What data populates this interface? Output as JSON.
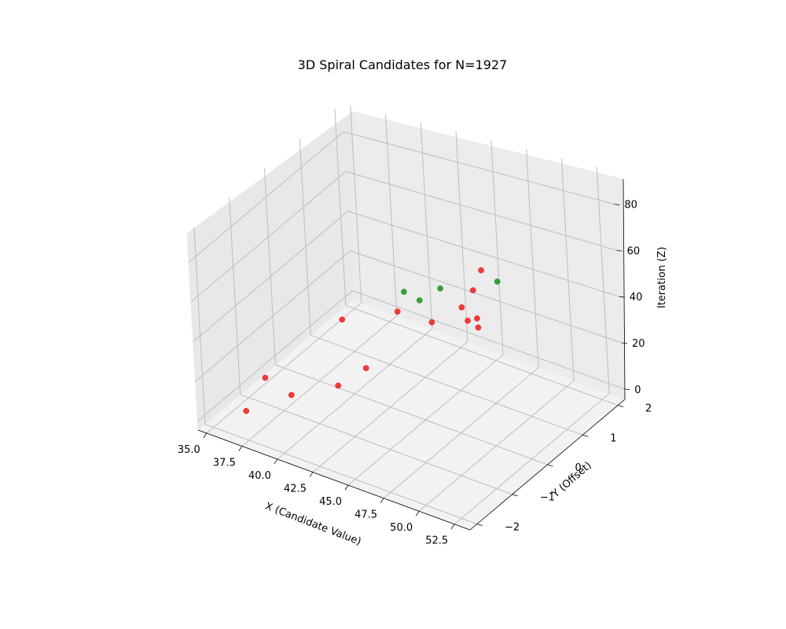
{
  "chart_data": {
    "type": "scatter",
    "title": "3D Spiral Candidates for N=1927",
    "xlabel": "X (Candidate Value)",
    "ylabel": "Y (Offset)",
    "zlabel": "Iteration (Z)",
    "xlim": [
      34.4,
      53.6
    ],
    "ylim": [
      -2.2,
      2.2
    ],
    "zlim": [
      -4.5,
      94.5
    ],
    "xticks": [
      "35.0",
      "37.5",
      "40.0",
      "42.5",
      "45.0",
      "47.5",
      "50.0",
      "52.5"
    ],
    "yticks": [
      "−2",
      "−1",
      "0",
      "1",
      "2"
    ],
    "zticks": [
      "0",
      "20",
      "40",
      "60",
      "80"
    ],
    "grid": true,
    "colors": {
      "red": "#ee1c1c",
      "green": "#1f8f1f"
    },
    "points": [
      {
        "x": 35.2,
        "y": -0.6,
        "z": 0,
        "c": "red"
      },
      {
        "x": 36.2,
        "y": 1.2,
        "z": 5,
        "c": "red"
      },
      {
        "x": 37.4,
        "y": -2.0,
        "z": 10,
        "c": "red"
      },
      {
        "x": 38.9,
        "y": 1.9,
        "z": 15,
        "c": "green"
      },
      {
        "x": 39.9,
        "y": -1.7,
        "z": 20,
        "c": "red"
      },
      {
        "x": 41.0,
        "y": 0.9,
        "z": 25,
        "c": "red"
      },
      {
        "x": 42.1,
        "y": 1.1,
        "z": 30,
        "c": "green"
      },
      {
        "x": 43.1,
        "y": 1.3,
        "z": 35,
        "c": "green"
      },
      {
        "x": 44.0,
        "y": -2.0,
        "z": 40,
        "c": "red"
      },
      {
        "x": 45.0,
        "y": -1.6,
        "z": 45,
        "c": "red"
      },
      {
        "x": 46.1,
        "y": 1.3,
        "z": 50,
        "c": "red"
      },
      {
        "x": 47.0,
        "y": -0.5,
        "z": 55,
        "c": "red"
      },
      {
        "x": 48.0,
        "y": 0.3,
        "z": 60,
        "c": "red"
      },
      {
        "x": 48.9,
        "y": -0.4,
        "z": 65,
        "c": "red"
      },
      {
        "x": 50.0,
        "y": 0.2,
        "z": 70,
        "c": "green"
      },
      {
        "x": 51.0,
        "y": -1.1,
        "z": 75,
        "c": "red"
      },
      {
        "x": 51.9,
        "y": -1.2,
        "z": 80,
        "c": "red"
      },
      {
        "x": 52.9,
        "y": -1.6,
        "z": 85,
        "c": "red"
      }
    ]
  }
}
